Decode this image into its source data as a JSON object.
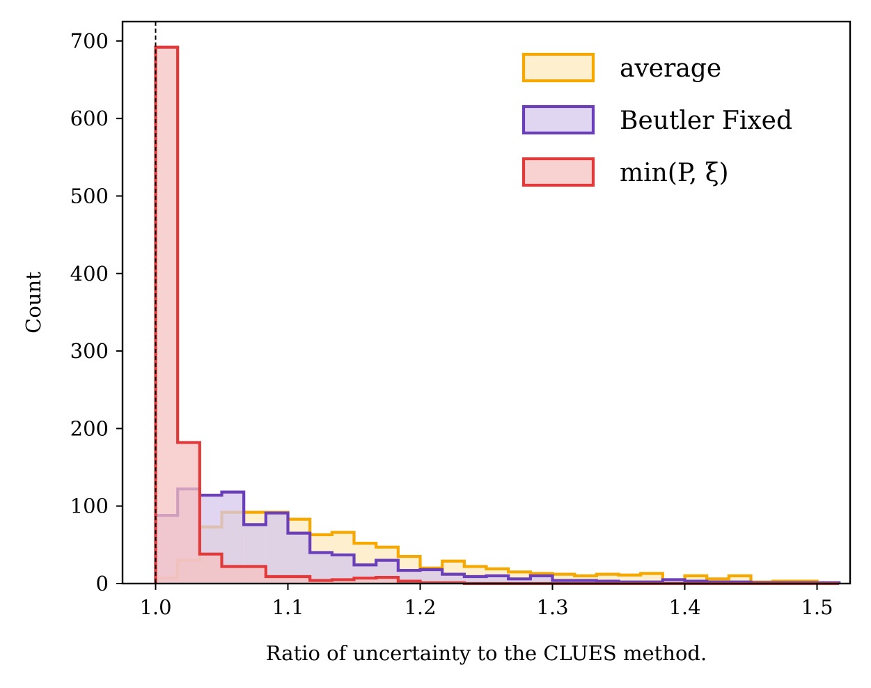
{
  "chart_data": {
    "type": "histogram",
    "xlabel": "Ratio of uncertainty to the CLUES method.",
    "ylabel": "Count",
    "xlim": [
      0.975,
      1.525
    ],
    "ylim": [
      0,
      725
    ],
    "xticks": [
      "1.0",
      "1.1",
      "1.2",
      "1.3",
      "1.4",
      "1.5"
    ],
    "xtick_values": [
      1.0,
      1.1,
      1.2,
      1.3,
      1.4,
      1.5
    ],
    "yticks": [
      "0",
      "100",
      "200",
      "300",
      "400",
      "500",
      "600",
      "700"
    ],
    "ytick_values": [
      0,
      100,
      200,
      300,
      400,
      500,
      600,
      700
    ],
    "reference_line_x": 1.0,
    "legend_position": "upper right",
    "bin_start": 1.0,
    "bin_width": 0.016667,
    "series": [
      {
        "name": "average",
        "color": "#f5a800",
        "fill": "#fde9bd",
        "values": [
          7,
          30,
          73,
          92,
          92,
          92,
          83,
          63,
          66,
          52,
          47,
          35,
          20,
          29,
          22,
          19,
          15,
          13,
          12,
          10,
          12,
          11,
          13,
          5,
          10,
          6,
          10,
          2,
          3,
          3,
          1
        ]
      },
      {
        "name": "Beutler Fixed",
        "color": "#6a3fb9",
        "fill": "#d5c8ec",
        "values": [
          88,
          122,
          114,
          118,
          76,
          91,
          65,
          40,
          37,
          24,
          30,
          17,
          18,
          12,
          9,
          10,
          6,
          10,
          4,
          4,
          3,
          2,
          2,
          5,
          3,
          2,
          2,
          1,
          1,
          1,
          1
        ]
      },
      {
        "name": "min(P, ξ)",
        "color": "#e03a3a",
        "fill": "#f5c2c2",
        "values": [
          692,
          182,
          38,
          22,
          22,
          9,
          9,
          4,
          5,
          7,
          8,
          3,
          1,
          1,
          0,
          0,
          0,
          0,
          0,
          0,
          0,
          0,
          0,
          0,
          0,
          0,
          0,
          0,
          0,
          0,
          0
        ]
      }
    ]
  }
}
